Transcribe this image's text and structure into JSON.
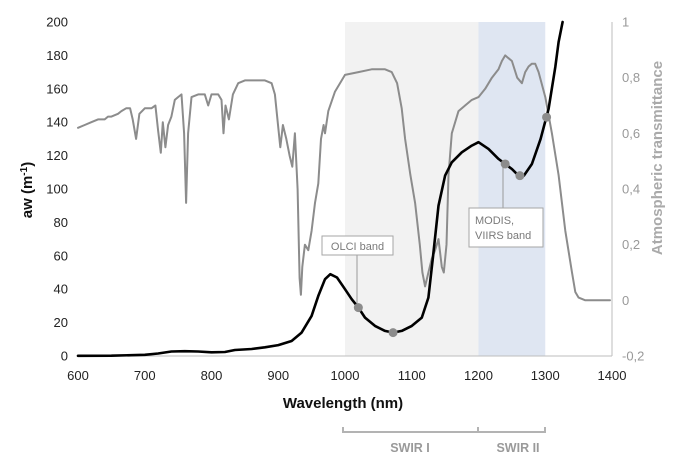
{
  "chart_data": {
    "type": "line",
    "x_label": "Wavelength (nm)",
    "y_label_left": "aw (m",
    "y_label_left_sup": "-1",
    "y_label_left_close": ")",
    "y_label_right": "Atmospheric transmittance",
    "x_ticks": [
      "600",
      "700",
      "800",
      "900",
      "1000",
      "1100",
      "1200",
      "1300",
      "1400"
    ],
    "y_left_ticks": [
      "0",
      "20",
      "40",
      "60",
      "80",
      "100",
      "120",
      "140",
      "160",
      "180",
      "200"
    ],
    "y_right_ticks": [
      "-0,2",
      "0",
      "0,2",
      "0,4",
      "0,6",
      "0,8",
      "1"
    ],
    "xlim": [
      600,
      1400
    ],
    "ylim_left": [
      0,
      200
    ],
    "ylim_right": [
      -0.2,
      1
    ],
    "series": [
      {
        "color": "#000000",
        "axis": "left",
        "points": [
          [
            600,
            0.1
          ],
          [
            650,
            0.2
          ],
          [
            700,
            0.7
          ],
          [
            720,
            1.5
          ],
          [
            740,
            2.7
          ],
          [
            760,
            2.9
          ],
          [
            780,
            2.7
          ],
          [
            800,
            2.2
          ],
          [
            820,
            2.4
          ],
          [
            835,
            3.6
          ],
          [
            860,
            4.2
          ],
          [
            880,
            5.2
          ],
          [
            900,
            6.5
          ],
          [
            920,
            9
          ],
          [
            935,
            14
          ],
          [
            950,
            24
          ],
          [
            960,
            36
          ],
          [
            970,
            46
          ],
          [
            978,
            49
          ],
          [
            988,
            47
          ],
          [
            1000,
            40
          ],
          [
            1010,
            34
          ],
          [
            1020,
            29
          ],
          [
            1030,
            23
          ],
          [
            1045,
            18
          ],
          [
            1060,
            15
          ],
          [
            1072,
            14
          ],
          [
            1085,
            15
          ],
          [
            1100,
            18
          ],
          [
            1115,
            23
          ],
          [
            1125,
            35
          ],
          [
            1132,
            60
          ],
          [
            1140,
            90
          ],
          [
            1150,
            108
          ],
          [
            1160,
            116
          ],
          [
            1175,
            122
          ],
          [
            1190,
            126
          ],
          [
            1200,
            128
          ],
          [
            1215,
            124
          ],
          [
            1230,
            118
          ],
          [
            1240,
            115
          ],
          [
            1250,
            112
          ],
          [
            1260,
            108
          ],
          [
            1268,
            108
          ],
          [
            1280,
            115
          ],
          [
            1293,
            130
          ],
          [
            1305,
            148
          ],
          [
            1315,
            173
          ],
          [
            1320,
            188
          ],
          [
            1326,
            200
          ]
        ]
      },
      {
        "color": "#8c8c8c",
        "axis": "right",
        "points": [
          [
            600,
            0.62
          ],
          [
            610,
            0.63
          ],
          [
            620,
            0.64
          ],
          [
            630,
            0.65
          ],
          [
            640,
            0.65
          ],
          [
            645,
            0.66
          ],
          [
            650,
            0.66
          ],
          [
            660,
            0.67
          ],
          [
            665,
            0.68
          ],
          [
            672,
            0.69
          ],
          [
            678,
            0.69
          ],
          [
            682,
            0.65
          ],
          [
            687,
            0.58
          ],
          [
            692,
            0.67
          ],
          [
            700,
            0.69
          ],
          [
            710,
            0.69
          ],
          [
            716,
            0.7
          ],
          [
            720,
            0.61
          ],
          [
            724,
            0.53
          ],
          [
            727,
            0.64
          ],
          [
            731,
            0.55
          ],
          [
            735,
            0.63
          ],
          [
            740,
            0.66
          ],
          [
            745,
            0.72
          ],
          [
            750,
            0.73
          ],
          [
            755,
            0.74
          ],
          [
            759,
            0.6
          ],
          [
            762,
            0.35
          ],
          [
            765,
            0.6
          ],
          [
            770,
            0.73
          ],
          [
            780,
            0.74
          ],
          [
            790,
            0.74
          ],
          [
            795,
            0.7
          ],
          [
            800,
            0.74
          ],
          [
            810,
            0.74
          ],
          [
            815,
            0.72
          ],
          [
            818,
            0.6
          ],
          [
            821,
            0.7
          ],
          [
            826,
            0.65
          ],
          [
            832,
            0.74
          ],
          [
            840,
            0.78
          ],
          [
            850,
            0.79
          ],
          [
            860,
            0.79
          ],
          [
            870,
            0.79
          ],
          [
            880,
            0.79
          ],
          [
            890,
            0.78
          ],
          [
            895,
            0.74
          ],
          [
            900,
            0.62
          ],
          [
            903,
            0.55
          ],
          [
            907,
            0.63
          ],
          [
            912,
            0.58
          ],
          [
            917,
            0.52
          ],
          [
            921,
            0.48
          ],
          [
            925,
            0.6
          ],
          [
            929,
            0.4
          ],
          [
            932,
            0.08
          ],
          [
            934,
            0.02
          ],
          [
            936,
            0.12
          ],
          [
            940,
            0.2
          ],
          [
            945,
            0.18
          ],
          [
            950,
            0.25
          ],
          [
            955,
            0.35
          ],
          [
            960,
            0.42
          ],
          [
            964,
            0.58
          ],
          [
            968,
            0.63
          ],
          [
            970,
            0.6
          ],
          [
            975,
            0.68
          ],
          [
            985,
            0.75
          ],
          [
            1000,
            0.81
          ],
          [
            1020,
            0.82
          ],
          [
            1040,
            0.83
          ],
          [
            1060,
            0.83
          ],
          [
            1070,
            0.82
          ],
          [
            1078,
            0.78
          ],
          [
            1085,
            0.69
          ],
          [
            1090,
            0.58
          ],
          [
            1098,
            0.45
          ],
          [
            1105,
            0.35
          ],
          [
            1112,
            0.2
          ],
          [
            1116,
            0.1
          ],
          [
            1120,
            0.05
          ],
          [
            1125,
            0.1
          ],
          [
            1130,
            0.15
          ],
          [
            1135,
            0.18
          ],
          [
            1140,
            0.22
          ],
          [
            1145,
            0.12
          ],
          [
            1148,
            0.1
          ],
          [
            1152,
            0.2
          ],
          [
            1155,
            0.45
          ],
          [
            1160,
            0.6
          ],
          [
            1170,
            0.68
          ],
          [
            1180,
            0.7
          ],
          [
            1190,
            0.72
          ],
          [
            1200,
            0.73
          ],
          [
            1210,
            0.76
          ],
          [
            1220,
            0.8
          ],
          [
            1230,
            0.83
          ],
          [
            1235,
            0.86
          ],
          [
            1240,
            0.88
          ],
          [
            1245,
            0.87
          ],
          [
            1250,
            0.86
          ],
          [
            1258,
            0.8
          ],
          [
            1265,
            0.78
          ],
          [
            1270,
            0.82
          ],
          [
            1275,
            0.84
          ],
          [
            1280,
            0.85
          ],
          [
            1285,
            0.85
          ],
          [
            1290,
            0.82
          ],
          [
            1300,
            0.73
          ],
          [
            1310,
            0.6
          ],
          [
            1320,
            0.45
          ],
          [
            1330,
            0.25
          ],
          [
            1340,
            0.1
          ],
          [
            1345,
            0.03
          ],
          [
            1350,
            0.01
          ],
          [
            1360,
            0.0
          ],
          [
            1380,
            0.0
          ],
          [
            1397,
            0.0
          ]
        ]
      }
    ],
    "markers": [
      {
        "x": 1020,
        "y": 29
      },
      {
        "x": 1072,
        "y": 14
      },
      {
        "x": 1240,
        "y": 115
      },
      {
        "x": 1262,
        "y": 108
      },
      {
        "x": 1302,
        "y": 143
      }
    ],
    "bands": [
      {
        "from": 1000,
        "to": 1200,
        "color": "#f2f2f2"
      },
      {
        "from": 1200,
        "to": 1300,
        "color": "#dfe6f2"
      }
    ],
    "annotations": [
      {
        "label": "OLCI band"
      },
      {
        "label": "MODIS,",
        "label2": "VIIRS band"
      }
    ],
    "band_labels": [
      "SWIR I",
      "SWIR II"
    ]
  }
}
